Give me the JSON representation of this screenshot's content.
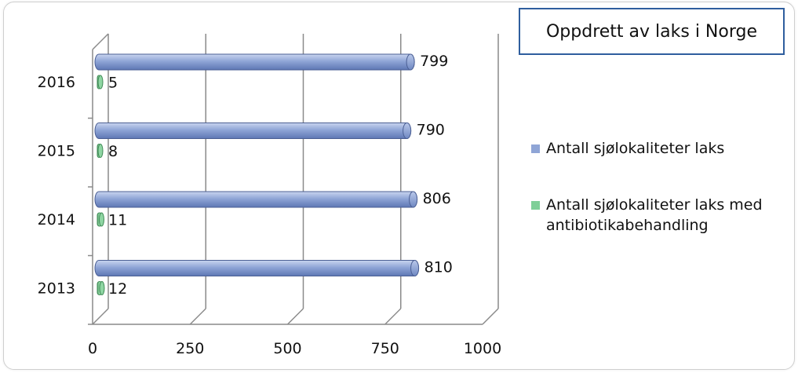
{
  "chart_data": {
    "type": "bar",
    "orientation": "horizontal",
    "title": "Oppdrett av laks i Norge",
    "categories": [
      "2013",
      "2014",
      "2015",
      "2016"
    ],
    "series": [
      {
        "name": "Antall sjølokaliteter laks",
        "values": [
          810,
          806,
          790,
          799
        ],
        "color": "#8fa5d6"
      },
      {
        "name": "Antall sjølokaliteter laks med antibiotikabehandling",
        "values": [
          12,
          11,
          8,
          5
        ],
        "color": "#7fcf98"
      }
    ],
    "x_ticks": [
      "0",
      "250",
      "500",
      "750",
      "1000"
    ],
    "xlim": [
      0,
      1000
    ],
    "grid": true,
    "legend_position": "right",
    "style": "3d"
  }
}
